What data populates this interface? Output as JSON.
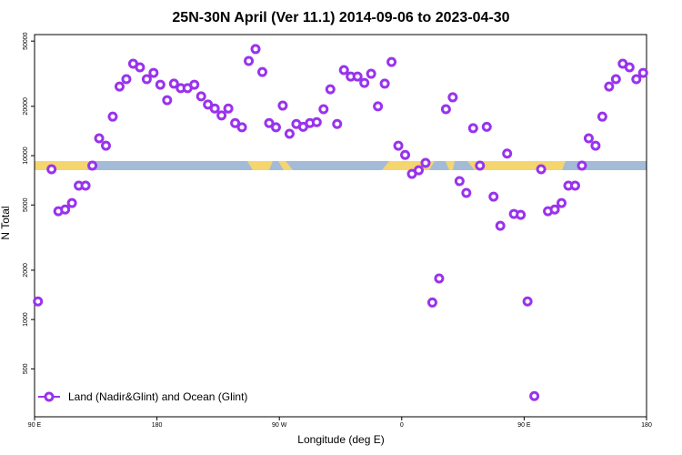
{
  "chart_data": {
    "type": "scatter",
    "title": "25N-30N April (Ver 11.1)   2014-09-06 to 2023-04-30",
    "xlabel": "Longitude (deg E)",
    "ylabel": "N Total",
    "log_y": true,
    "legend": "lower left",
    "xlim": [
      90,
      540
    ],
    "xticks": [
      {
        "value": 90,
        "label": "90 E"
      },
      {
        "value": 180,
        "label": "180"
      },
      {
        "value": 270,
        "label": "90 W"
      },
      {
        "value": 360,
        "label": "0"
      },
      {
        "value": 450,
        "label": "90 E"
      },
      {
        "value": 540,
        "label": "180"
      }
    ],
    "ylim": [
      255,
      54800
    ],
    "yticks": [
      500,
      1000,
      2000,
      5000,
      10000,
      20000,
      50000
    ],
    "series": [
      {
        "name": "Land (Nadir&Glint) and Ocean (Glint)",
        "color": "#9933ee",
        "x": [
          92.5,
          102.5,
          107.5,
          112.5,
          117.5,
          122.5,
          127.5,
          132.5,
          137.5,
          142.5,
          147.5,
          152.5,
          157.5,
          162.5,
          167.5,
          172.5,
          177.5,
          182.5,
          187.5,
          192.5,
          197.5,
          202.5,
          207.5,
          212.5,
          217.5,
          222.5,
          227.5,
          232.5,
          237.5,
          242.5,
          247.5,
          252.5,
          257.5,
          262.5,
          267.5,
          272.5,
          277.5,
          282.5,
          287.5,
          292.5,
          297.5,
          302.5,
          307.5,
          312.5,
          317.5,
          322.5,
          327.5,
          332.5,
          337.5,
          342.5,
          347.5,
          352.5,
          357.5,
          362.5,
          367.5,
          372.5,
          377.5,
          382.5,
          387.5,
          392.5,
          397.5,
          402.5,
          407.5,
          412.5,
          417.5,
          422.5,
          427.5,
          432.5,
          437.5,
          442.5,
          447.5,
          452.5,
          457.5,
          462.5,
          467.5,
          472.5,
          477.5,
          482.5,
          487.5,
          492.5,
          497.5,
          502.5,
          507.5,
          512.5,
          517.5,
          522.5,
          527.5,
          532.5,
          537.5
        ],
        "values": [
          1290,
          8260,
          4580,
          4690,
          5140,
          6560,
          6560,
          8690,
          12760,
          11500,
          17300,
          26400,
          29300,
          36400,
          34600,
          29300,
          32000,
          27100,
          21800,
          27500,
          25800,
          25800,
          27100,
          23000,
          20500,
          19400,
          17600,
          19400,
          15800,
          14900,
          37800,
          44700,
          32400,
          15800,
          14900,
          20200,
          13600,
          15600,
          15000,
          15800,
          16000,
          19200,
          25400,
          15600,
          33300,
          30400,
          30400,
          27800,
          31600,
          20000,
          27500,
          37300,
          11500,
          10100,
          7740,
          8140,
          9030,
          1270,
          1780,
          19200,
          22700,
          6990,
          5920,
          14700,
          8690,
          15000,
          5620,
          3730,
          10300,
          4410,
          4350,
          1290,
          341,
          8260,
          4580,
          4690,
          5140,
          6560,
          6560,
          8690,
          12760,
          11500,
          17300,
          26400,
          29300,
          36400,
          34600,
          29300,
          32000
        ]
      }
    ]
  }
}
